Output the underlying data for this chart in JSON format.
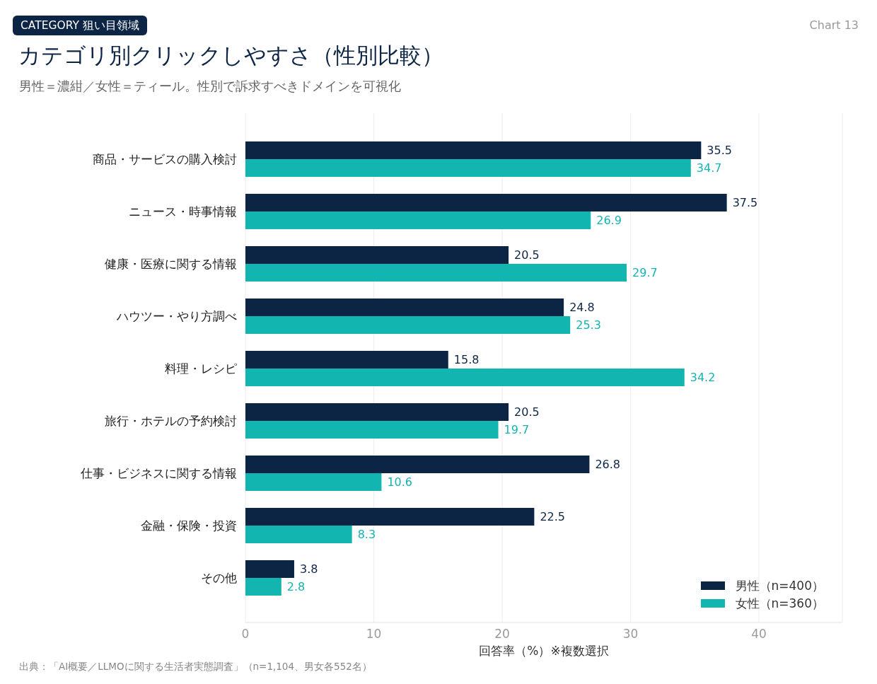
{
  "chart_data": {
    "type": "bar",
    "orientation": "horizontal",
    "title": "カテゴリ別クリックしやすさ（性別比較）",
    "subtitle": "男性＝濃紺／女性＝ティール。性別で訴求すべきドメインを可視化",
    "xlabel": "回答率（%）※複数選択",
    "categories": [
      "商品・サービスの購入検討",
      "ニュース・時事情報",
      "健康・医療に関する情報",
      "ハウツー・やり方調べ",
      "料理・レシピ",
      "旅行・ホテルの予約検討",
      "仕事・ビジネスに関する情報",
      "金融・保険・投資",
      "その他"
    ],
    "series": [
      {
        "name": "男性（n=400）",
        "color": "#0d2545",
        "values": [
          35.5,
          37.5,
          20.5,
          24.8,
          15.8,
          20.5,
          26.8,
          22.5,
          3.8
        ]
      },
      {
        "name": "女性（n=360）",
        "color": "#13b5b1",
        "values": [
          34.7,
          26.9,
          29.7,
          25.3,
          34.2,
          19.7,
          10.6,
          8.3,
          2.8
        ]
      }
    ],
    "xlim": [
      0,
      46.5
    ],
    "xticks": [
      0,
      10,
      20,
      30,
      40
    ],
    "grid": "x",
    "legend": "bottom right",
    "data_labels": true,
    "annotations": [
      "CATEGORY 狙い目領域",
      "Chart 13",
      "出典：「AI概要／LLMOに関する生活者実態調査」（n=1,104、男女各552名）"
    ]
  }
}
